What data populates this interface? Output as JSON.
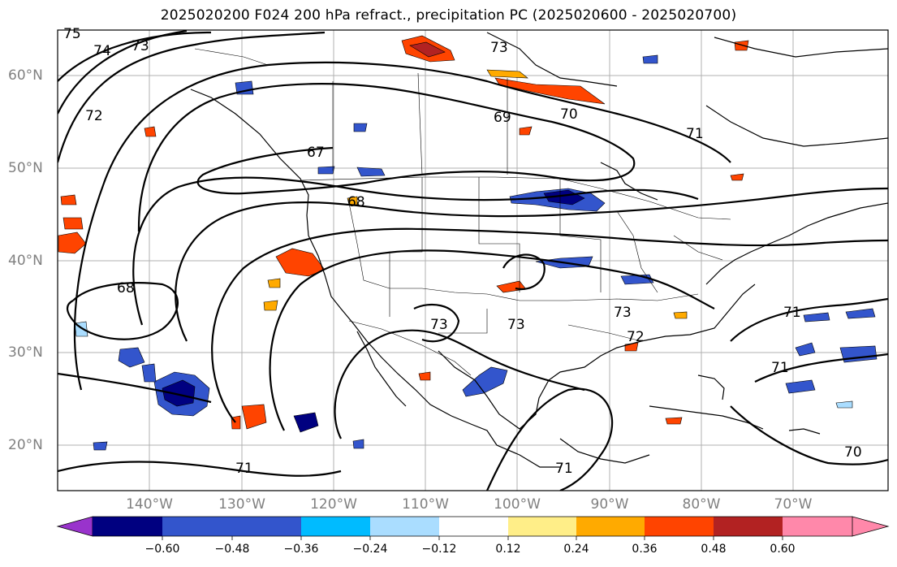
{
  "title": "2025020200 F024 200 hPa refract., precipitation PC (2025020600 - 2025020700)",
  "lat_labels": [
    "60°N",
    "50°N",
    "40°N",
    "30°N",
    "20°N"
  ],
  "lon_labels": [
    "140°W",
    "130°W",
    "120°W",
    "110°W",
    "100°W",
    "90°W",
    "80°W",
    "70°W"
  ],
  "contour_labels": [
    "75",
    "74",
    "73",
    "72",
    "73",
    "67",
    "69",
    "70",
    "71",
    "68",
    "68",
    "73",
    "73",
    "73",
    "72",
    "71",
    "71",
    "71",
    "70",
    "71"
  ],
  "colorbar": {
    "labels": [
      "−0.60",
      "−0.48",
      "−0.36",
      "−0.24",
      "−0.12",
      "0.12",
      "0.24",
      "0.36",
      "0.48",
      "0.60"
    ],
    "colors": [
      "#9933cc",
      "#000080",
      "#3355cc",
      "#00bbff",
      "#aaddff",
      "#ffffff",
      "#ffee88",
      "#ffaa00",
      "#ff4400",
      "#b22222",
      "#ff88aa"
    ]
  }
}
